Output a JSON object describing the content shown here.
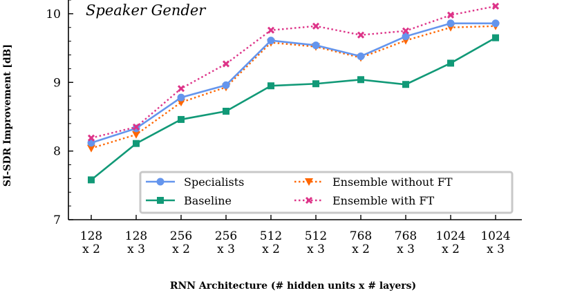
{
  "chart_data": {
    "type": "line",
    "title": "Speaker Gender",
    "xlabel": "RNN Architecture (# hidden units x # layers)",
    "ylabel": "SI-SDR Improvement [dB]",
    "ylim": [
      7,
      10.2
    ],
    "yticks": [
      7,
      8,
      9,
      10
    ],
    "categories": [
      [
        "128",
        "x 2"
      ],
      [
        "128",
        "x 3"
      ],
      [
        "256",
        "x 2"
      ],
      [
        "256",
        "x 3"
      ],
      [
        "512",
        "x 2"
      ],
      [
        "512",
        "x 3"
      ],
      [
        "768",
        "x 2"
      ],
      [
        "768",
        "x 3"
      ],
      [
        "1024",
        "x 2"
      ],
      [
        "1024",
        "x 3"
      ]
    ],
    "legend_position": "lower-right",
    "series": [
      {
        "name": "Specialists",
        "color": "#6495ED",
        "marker": "circle",
        "linestyle": "solid",
        "values": [
          8.12,
          8.33,
          8.78,
          8.96,
          9.61,
          9.54,
          9.38,
          9.67,
          9.86,
          9.86
        ]
      },
      {
        "name": "Baseline",
        "color": "#119977",
        "marker": "square",
        "linestyle": "solid",
        "values": [
          7.58,
          8.11,
          8.46,
          8.58,
          8.95,
          8.98,
          9.04,
          8.97,
          9.28,
          9.65
        ]
      },
      {
        "name": "Ensemble without FT",
        "color": "#FF6600",
        "marker": "triangle-down",
        "linestyle": "dotted",
        "values": [
          8.04,
          8.24,
          8.71,
          8.93,
          9.58,
          9.52,
          9.36,
          9.61,
          9.8,
          9.82
        ]
      },
      {
        "name": "Ensemble with FT",
        "color": "#DD3388",
        "marker": "x",
        "linestyle": "dotted",
        "values": [
          8.19,
          8.35,
          8.91,
          9.27,
          9.76,
          9.82,
          9.69,
          9.75,
          9.98,
          10.11
        ]
      }
    ]
  }
}
